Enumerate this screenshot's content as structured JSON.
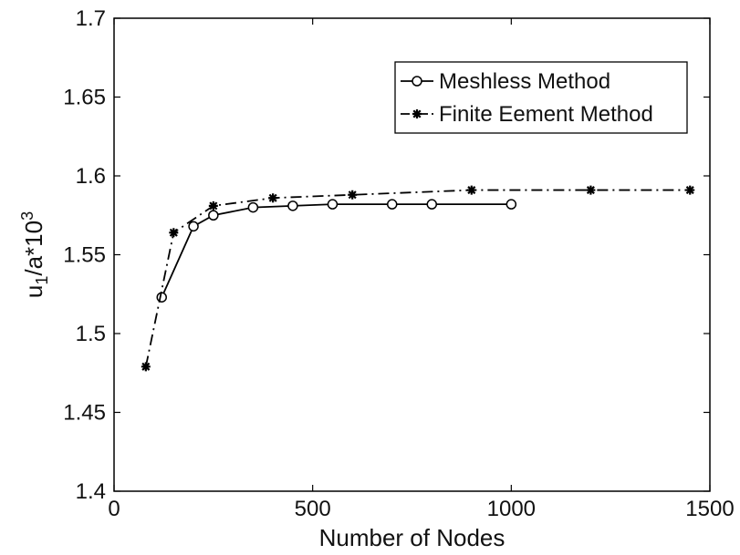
{
  "chart_data": {
    "type": "line",
    "xlabel": "Number of Nodes",
    "ylabel_base": "u",
    "ylabel_sub": "1",
    "ylabel_mid": "/a*10",
    "ylabel_sup": "3",
    "xlim": [
      0,
      1500
    ],
    "ylim": [
      1.4,
      1.7
    ],
    "x_ticks": [
      0,
      500,
      1000,
      1500
    ],
    "x_tick_labels": [
      "0",
      "500",
      "1000",
      "1500"
    ],
    "y_ticks": [
      1.4,
      1.45,
      1.5,
      1.55,
      1.6,
      1.65,
      1.7
    ],
    "y_tick_labels": [
      "1.4",
      "1.45",
      "1.5",
      "1.55",
      "1.6",
      "1.65",
      "1.7"
    ],
    "grid": false,
    "legend_position": "top-right",
    "series": [
      {
        "name": "Meshless Method",
        "marker": "circle",
        "line": "solid",
        "color": "#000000",
        "x": [
          120,
          200,
          250,
          350,
          450,
          550,
          700,
          800,
          1000
        ],
        "y": [
          1.523,
          1.568,
          1.575,
          1.58,
          1.581,
          1.582,
          1.582,
          1.582,
          1.582
        ]
      },
      {
        "name": "Finite Eement Method",
        "marker": "star",
        "line": "dash-dot",
        "color": "#000000",
        "x": [
          80,
          150,
          250,
          400,
          600,
          900,
          1200,
          1450
        ],
        "y": [
          1.479,
          1.564,
          1.581,
          1.586,
          1.588,
          1.591,
          1.591,
          1.591
        ]
      }
    ]
  }
}
